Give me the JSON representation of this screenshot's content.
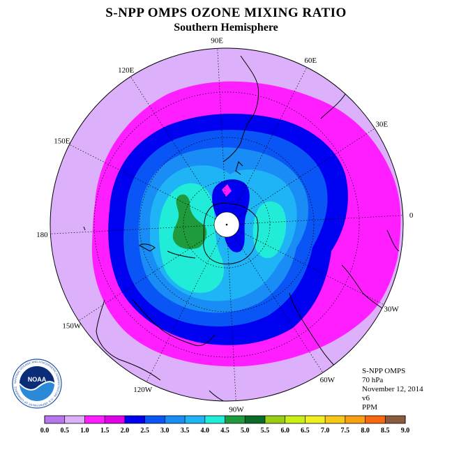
{
  "header": {
    "title": "S-NPP OMPS OZONE MIXING RATIO",
    "subtitle": "Southern Hemisphere"
  },
  "map": {
    "longitude_labels": [
      {
        "text": "0",
        "lon": 0
      },
      {
        "text": "30E",
        "lon": 30
      },
      {
        "text": "60E",
        "lon": 60
      },
      {
        "text": "90E",
        "lon": 90
      },
      {
        "text": "120E",
        "lon": 120
      },
      {
        "text": "150E",
        "lon": 150
      },
      {
        "text": "180",
        "lon": 180
      },
      {
        "text": "150W",
        "lon": -150
      },
      {
        "text": "120W",
        "lon": -120
      },
      {
        "text": "90W",
        "lon": -90
      },
      {
        "text": "60W",
        "lon": -60
      },
      {
        "text": "30W",
        "lon": -30
      }
    ]
  },
  "info": {
    "instrument": "S-NPP OMPS",
    "level": "70 hPa",
    "date": "November 12, 2014",
    "version": "v6",
    "units": "PPM"
  },
  "logo": {
    "text": "NOAA",
    "ring_text": "NATIONAL OCEANIC AND ATMOSPHERIC ADMINISTRATION · U.S. DEPARTMENT OF COMMERCE"
  },
  "colorbar": {
    "ticks": [
      "0.0",
      "0.5",
      "1.0",
      "1.5",
      "2.0",
      "2.5",
      "3.0",
      "3.5",
      "4.0",
      "4.5",
      "5.0",
      "5.5",
      "6.0",
      "6.5",
      "7.0",
      "7.5",
      "8.0",
      "8.5",
      "9.0"
    ],
    "colors": [
      "#b875f0",
      "#dcb0fa",
      "#ff1eff",
      "#e000e8",
      "#0000f0",
      "#0a55f5",
      "#1a8cf5",
      "#1eb4f5",
      "#20ecd8",
      "#1f9a3c",
      "#0a6a28",
      "#9acd14",
      "#c8f014",
      "#f0f020",
      "#f8c818",
      "#f8a010",
      "#f86810",
      "#f01010",
      "#8c5a3c"
    ]
  },
  "regions": {
    "background": "#dcb0fa",
    "contours": [
      "#ff1eff",
      "#0000f0",
      "#0a55f5",
      "#1a8cf5",
      "#1eb4f5",
      "#20ecd8",
      "#1f9a3c"
    ]
  }
}
